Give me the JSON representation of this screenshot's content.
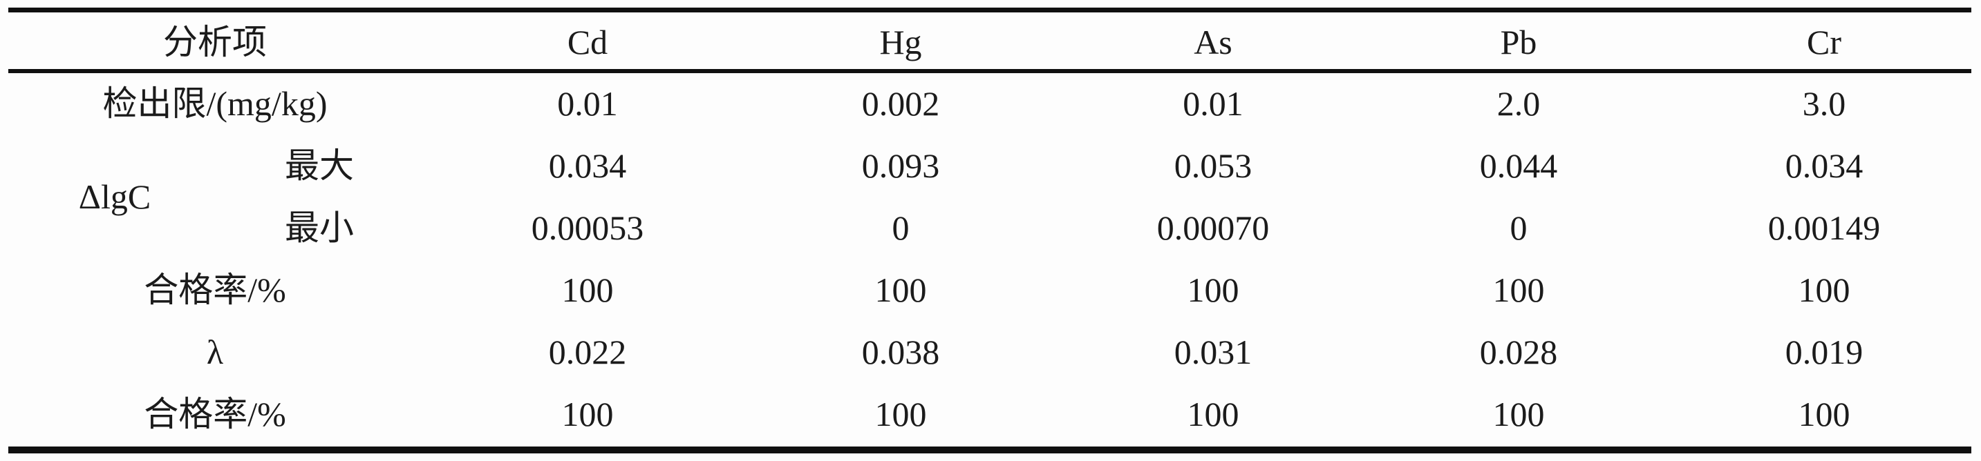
{
  "table": {
    "colors": {
      "background": "#fdfdfd",
      "text": "#1b1b1b",
      "rule": "#101010"
    },
    "header": {
      "item_column_label": "分析项",
      "element_columns": [
        "Cd",
        "Hg",
        "As",
        "Pb",
        "Cr"
      ]
    },
    "rows": {
      "detection_limit": {
        "label": "检出限/(mg/kg)",
        "values": [
          "0.01",
          "0.002",
          "0.01",
          "2.0",
          "3.0"
        ]
      },
      "delta_lgc": {
        "group_label": "ΔlgC",
        "max": {
          "label": "最大",
          "values": [
            "0.034",
            "0.093",
            "0.053",
            "0.044",
            "0.034"
          ]
        },
        "min": {
          "label": "最小",
          "values": [
            "0.00053",
            "0",
            "0.00070",
            "0",
            "0.00149"
          ]
        }
      },
      "pass_rate_1": {
        "label": "合格率/%",
        "values": [
          "100",
          "100",
          "100",
          "100",
          "100"
        ]
      },
      "lambda": {
        "label": "λ",
        "values": [
          "0.022",
          "0.038",
          "0.031",
          "0.028",
          "0.019"
        ]
      },
      "pass_rate_2": {
        "label": "合格率/%",
        "values": [
          "100",
          "100",
          "100",
          "100",
          "100"
        ]
      }
    }
  }
}
